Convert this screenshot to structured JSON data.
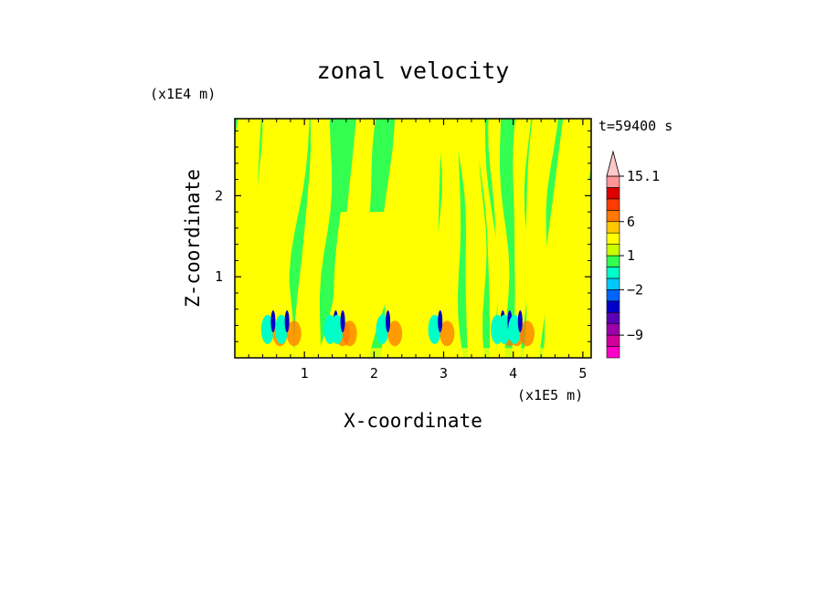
{
  "chart_data": {
    "type": "heatmap",
    "title": "zonal velocity",
    "xlabel": "X-coordinate",
    "ylabel": "Z-coordinate",
    "x_unit": "(x1E5 m)",
    "y_unit": "(x1E4 m)",
    "time_label": "t=59400 s",
    "xlim": [
      0,
      5.12
    ],
    "ylim": [
      0,
      2.95
    ],
    "xticks": [
      1,
      2,
      3,
      4,
      5
    ],
    "yticks": [
      1,
      2
    ],
    "colorbar": {
      "levels": [
        -13,
        -11,
        -9,
        -7,
        -5,
        -3,
        -2,
        -1,
        0,
        1,
        2,
        3,
        6,
        8,
        10.5,
        13,
        15.1
      ],
      "colors": [
        "#ff00c8",
        "#d2009b",
        "#9b00aa",
        "#5a00b4",
        "#0000c8",
        "#0064ff",
        "#00c8ff",
        "#00ffc8",
        "#32ff50",
        "#c8ff00",
        "#ffff00",
        "#ffc800",
        "#ff7800",
        "#ff3c00",
        "#dc0000",
        "#ff9696",
        "#ffc8c8"
      ],
      "tick_labels": [
        "15.1",
        "6",
        "1",
        "−2",
        "−9"
      ],
      "tick_values": [
        15.1,
        6,
        1,
        -2,
        -9
      ],
      "extend_top": true
    },
    "field_colors": {
      "positive_weak": "#ffff00",
      "near_zero": "#32ff50",
      "negative_weak": "#00ffc8",
      "strong_positive": "#ff7800",
      "strong_negative": "#0000c8"
    },
    "grid": false,
    "legend_placement": "right"
  }
}
